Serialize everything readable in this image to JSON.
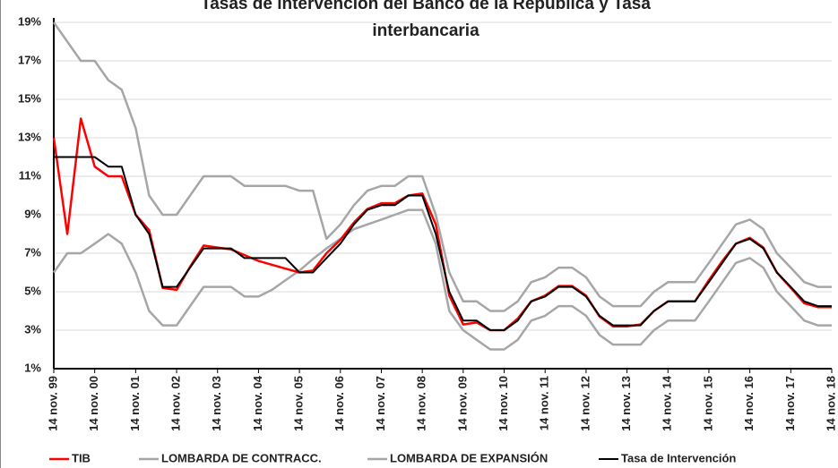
{
  "chart_data": {
    "type": "line",
    "title": "Tasas de intervención del Banco de la República y Tasa interbancaria",
    "x": [
      1999.87,
      2000.2,
      2000.53,
      2000.87,
      2001.2,
      2001.53,
      2001.87,
      2002.2,
      2002.53,
      2002.87,
      2003.2,
      2003.53,
      2003.87,
      2004.2,
      2004.53,
      2004.87,
      2005.2,
      2005.53,
      2005.87,
      2006.2,
      2006.53,
      2006.87,
      2007.2,
      2007.53,
      2007.87,
      2008.2,
      2008.53,
      2008.87,
      2009.2,
      2009.53,
      2009.87,
      2010.2,
      2010.53,
      2010.87,
      2011.2,
      2011.53,
      2011.87,
      2012.2,
      2012.53,
      2012.87,
      2013.2,
      2013.53,
      2013.87,
      2014.2,
      2014.53,
      2014.87,
      2015.2,
      2015.53,
      2015.87,
      2016.2,
      2016.53,
      2016.87,
      2017.2,
      2017.53,
      2017.87,
      2018.2,
      2018.53,
      2018.87
    ],
    "series": [
      {
        "name": "TIB",
        "color": "#ff0000",
        "width": 2.5,
        "values": [
          13,
          8,
          14,
          11.5,
          11,
          11,
          9,
          8.2,
          5.2,
          5.1,
          6.3,
          7.4,
          7.3,
          7.2,
          6.9,
          6.6,
          6.4,
          6.2,
          6.0,
          6.1,
          7.0,
          7.7,
          8.6,
          9.3,
          9.6,
          9.6,
          10.0,
          10.1,
          8.5,
          4.8,
          3.3,
          3.4,
          3.0,
          3.0,
          3.6,
          4.5,
          4.8,
          5.3,
          5.3,
          4.8,
          3.7,
          3.2,
          3.2,
          3.3,
          4.0,
          4.5,
          4.5,
          4.5,
          5.6,
          6.6,
          7.5,
          7.8,
          7.3,
          6.0,
          5.2,
          4.4,
          4.2,
          4.2
        ]
      },
      {
        "name": "LOMBARDA DE CONTRACC.",
        "color": "#a6a6a6",
        "width": 2.5,
        "values": [
          6,
          7,
          7,
          7.5,
          8,
          7.5,
          6,
          4,
          3.25,
          3.25,
          4.25,
          5.25,
          5.25,
          5.25,
          4.75,
          4.75,
          5.1,
          5.6,
          6.1,
          6.7,
          7.25,
          7.75,
          8.25,
          8.5,
          8.75,
          9,
          9.25,
          9.25,
          7.5,
          4,
          3.0,
          2.5,
          2,
          2,
          2.5,
          3.5,
          3.75,
          4.25,
          4.25,
          3.75,
          2.75,
          2.25,
          2.25,
          2.25,
          3,
          3.5,
          3.5,
          3.5,
          4.5,
          5.5,
          6.5,
          6.75,
          6.25,
          5,
          4.25,
          3.5,
          3.25,
          3.25
        ]
      },
      {
        "name": "LOMBARDA DE EXPANSIÓN",
        "color": "#a6a6a6",
        "width": 2.5,
        "values": [
          19,
          18,
          17,
          17,
          16,
          15.5,
          13.5,
          10,
          9,
          9,
          10,
          11,
          11,
          11,
          10.5,
          10.5,
          10.5,
          10.5,
          10.25,
          10.25,
          7.75,
          8.5,
          9.5,
          10.25,
          10.5,
          10.5,
          11,
          11,
          9,
          6,
          4.5,
          4.5,
          4,
          4,
          4.5,
          5.5,
          5.75,
          6.25,
          6.25,
          5.75,
          4.75,
          4.25,
          4.25,
          4.25,
          5,
          5.5,
          5.5,
          5.5,
          6.5,
          7.5,
          8.5,
          8.75,
          8.25,
          7,
          6.25,
          5.5,
          5.25,
          5.25
        ]
      },
      {
        "name": "Tasa de Intervención",
        "color": "#000000",
        "width": 2,
        "values": [
          12,
          12,
          12,
          12,
          11.5,
          11.5,
          9,
          8,
          5.25,
          5.25,
          6.25,
          7.25,
          7.25,
          7.25,
          6.75,
          6.75,
          6.75,
          6.75,
          6,
          6,
          6.75,
          7.5,
          8.5,
          9.25,
          9.5,
          9.5,
          10,
          10,
          8,
          5,
          3.5,
          3.5,
          3,
          3,
          3.5,
          4.5,
          4.75,
          5.25,
          5.25,
          4.75,
          3.75,
          3.25,
          3.25,
          3.25,
          4,
          4.5,
          4.5,
          4.5,
          5.5,
          6.5,
          7.5,
          7.75,
          7.25,
          6,
          5.25,
          4.5,
          4.25,
          4.25
        ]
      }
    ],
    "xlim": [
      1999.87,
      2018.87
    ],
    "xticks": [
      {
        "value": 1999.87,
        "label": "14 nov. 99"
      },
      {
        "value": 2000.87,
        "label": "14 nov. 00"
      },
      {
        "value": 2001.87,
        "label": "14 nov. 01"
      },
      {
        "value": 2002.87,
        "label": "14 nov. 02"
      },
      {
        "value": 2003.87,
        "label": "14 nov. 03"
      },
      {
        "value": 2004.87,
        "label": "14 nov. 04"
      },
      {
        "value": 2005.87,
        "label": "14 nov. 05"
      },
      {
        "value": 2006.87,
        "label": "14 nov. 06"
      },
      {
        "value": 2007.87,
        "label": "14 nov. 07"
      },
      {
        "value": 2008.87,
        "label": "14 nov. 08"
      },
      {
        "value": 2009.87,
        "label": "14 nov. 09"
      },
      {
        "value": 2010.87,
        "label": "14 nov. 10"
      },
      {
        "value": 2011.87,
        "label": "14 nov. 11"
      },
      {
        "value": 2012.87,
        "label": "14 nov. 12"
      },
      {
        "value": 2013.87,
        "label": "14 nov. 13"
      },
      {
        "value": 2014.87,
        "label": "14 nov. 14"
      },
      {
        "value": 2015.87,
        "label": "14 nov. 15"
      },
      {
        "value": 2016.87,
        "label": "14 nov. 16"
      },
      {
        "value": 2017.87,
        "label": "14 nov. 17"
      },
      {
        "value": 2018.87,
        "label": "14 nov. 18"
      }
    ],
    "ylim": [
      1,
      19
    ],
    "yticks": [
      {
        "value": 1,
        "label": "1%"
      },
      {
        "value": 3,
        "label": "3%"
      },
      {
        "value": 5,
        "label": "5%"
      },
      {
        "value": 7,
        "label": "7%"
      },
      {
        "value": 9,
        "label": "9%"
      },
      {
        "value": 11,
        "label": "11%"
      },
      {
        "value": 13,
        "label": "13%"
      },
      {
        "value": 15,
        "label": "15%"
      },
      {
        "value": 17,
        "label": "17%"
      },
      {
        "value": 19,
        "label": "19%"
      }
    ],
    "grid": true,
    "legend": "bottom"
  }
}
